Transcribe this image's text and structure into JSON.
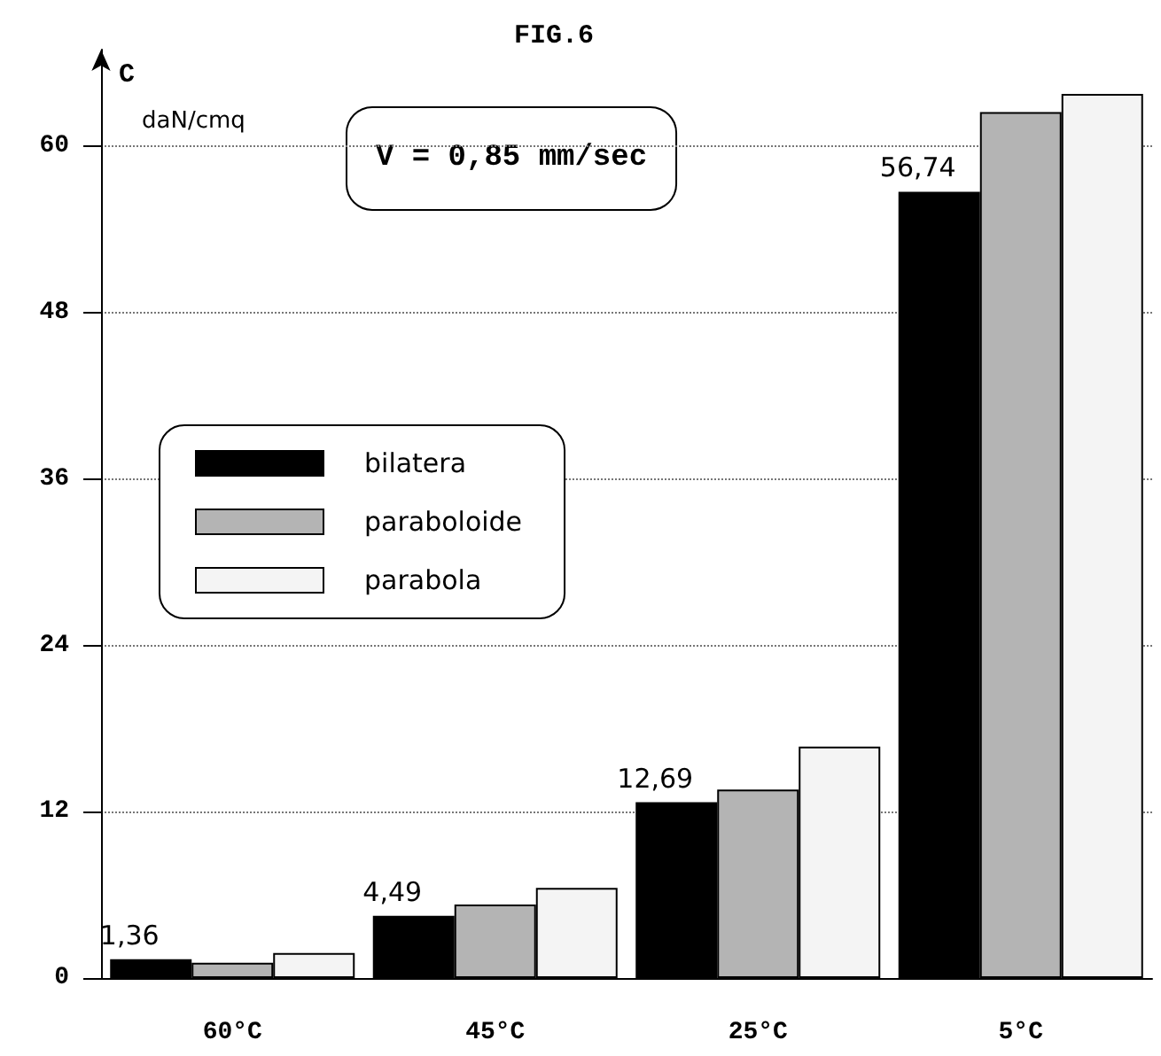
{
  "chart_data": {
    "type": "bar",
    "title": "FIG.6",
    "ylabel": "C",
    "annotations": [
      "daN/cmq",
      "V = 0,85 mm/sec"
    ],
    "categories": [
      "60°C",
      "45°C",
      "25°C",
      "5°C"
    ],
    "series": [
      {
        "name": "bilatera",
        "color": "#000000",
        "values": [
          1.36,
          4.49,
          12.69,
          56.74
        ],
        "value_labels": [
          "1,36",
          "4,49",
          "12,69",
          "56,74"
        ]
      },
      {
        "name": "paraboloide",
        "color": "#b4b4b4",
        "values": [
          1.1,
          5.3,
          13.6,
          62.5
        ]
      },
      {
        "name": "parabola",
        "color": "#f4f4f4",
        "values": [
          1.8,
          6.5,
          16.7,
          63.8
        ]
      }
    ],
    "ylim": [
      0,
      67
    ],
    "yticks": [
      0,
      12,
      24,
      36,
      48,
      60
    ],
    "grid": "y",
    "legend": "left"
  }
}
